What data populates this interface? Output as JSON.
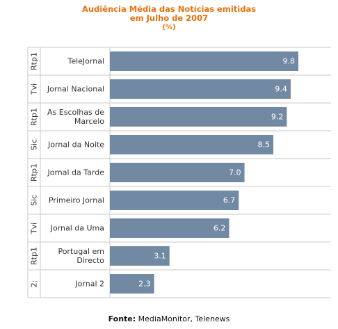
{
  "chart_data": {
    "type": "bar",
    "orientation": "horizontal",
    "title_lines": [
      "Audiência Média das Notícias emitidas",
      "em Julho de 2007",
      "(%)"
    ],
    "categories": [
      {
        "channel": "Rtp1",
        "program_lines": [
          "TeleJornal"
        ]
      },
      {
        "channel": "Tvi",
        "program_lines": [
          "Jornal Nacional"
        ]
      },
      {
        "channel": "Rtp1",
        "program_lines": [
          "As Escolhas de",
          "Marcelo"
        ]
      },
      {
        "channel": "Sic",
        "program_lines": [
          "Jornal da Noite"
        ]
      },
      {
        "channel": "Rtp1",
        "program_lines": [
          "Jornal da Tarde"
        ]
      },
      {
        "channel": "Sic",
        "program_lines": [
          "Primeiro Jornal"
        ]
      },
      {
        "channel": "Tvi",
        "program_lines": [
          "Jornal da Uma"
        ]
      },
      {
        "channel": "Rtp1",
        "program_lines": [
          "Portugal em",
          "Directo"
        ]
      },
      {
        "channel": "2:",
        "program_lines": [
          "Jornal 2"
        ]
      }
    ],
    "values": [
      9.8,
      9.4,
      9.2,
      8.5,
      7.0,
      6.7,
      6.2,
      3.1,
      2.3
    ],
    "value_labels": [
      "9.8",
      "9.4",
      "9.2",
      "8.5",
      "7.0",
      "6.7",
      "6.2",
      "3.1",
      "2.3"
    ],
    "xlim": [
      0,
      11.5
    ],
    "grid": false,
    "colors": {
      "bar": "#7289a3",
      "title": "#e8720c",
      "grid": "#c8c8c8",
      "value_label": "#ffffff"
    }
  },
  "footer": {
    "label": "Fonte:",
    "text": " MediaMonitor, Telenews"
  }
}
